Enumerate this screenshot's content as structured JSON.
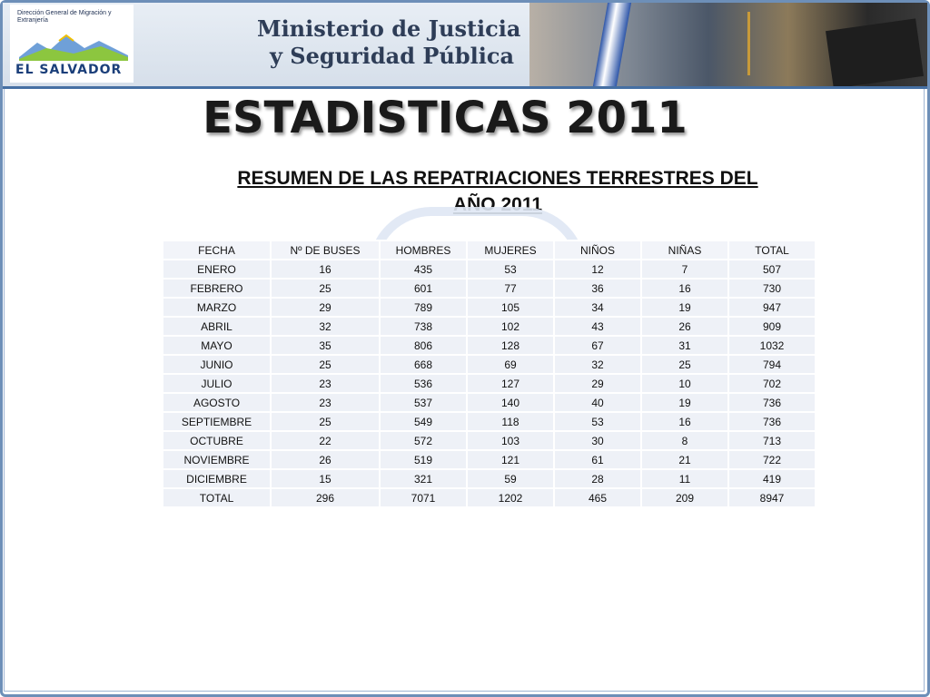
{
  "header": {
    "logo_agency": "Dirección General de Migración y Extranjería",
    "logo_country": "EL SALVADOR",
    "ministry_line1": "Ministerio de Justicia",
    "ministry_line2": "y Seguridad Pública"
  },
  "title": "ESTADISTICAS 2011",
  "subtitle": "RESUMEN DE LAS REPATRIACIONES TERRESTRES DEL AÑO 2011",
  "table": {
    "headers": [
      "FECHA",
      "Nº DE BUSES",
      "HOMBRES",
      "MUJERES",
      "NIÑOS",
      "NIÑAS",
      "TOTAL"
    ],
    "rows": [
      [
        "ENERO",
        "16",
        "435",
        "53",
        "12",
        "7",
        "507"
      ],
      [
        "FEBRERO",
        "25",
        "601",
        "77",
        "36",
        "16",
        "730"
      ],
      [
        "MARZO",
        "29",
        "789",
        "105",
        "34",
        "19",
        "947"
      ],
      [
        "ABRIL",
        "32",
        "738",
        "102",
        "43",
        "26",
        "909"
      ],
      [
        "MAYO",
        "35",
        "806",
        "128",
        "67",
        "31",
        "1032"
      ],
      [
        "JUNIO",
        "25",
        "668",
        "69",
        "32",
        "25",
        "794"
      ],
      [
        "JULIO",
        "23",
        "536",
        "127",
        "29",
        "10",
        "702"
      ],
      [
        "AGOSTO",
        "23",
        "537",
        "140",
        "40",
        "19",
        "736"
      ],
      [
        "SEPTIEMBRE",
        "25",
        "549",
        "118",
        "53",
        "16",
        "736"
      ],
      [
        "OCTUBRE",
        "22",
        "572",
        "103",
        "30",
        "8",
        "713"
      ],
      [
        "NOVIEMBRE",
        "26",
        "519",
        "121",
        "61",
        "21",
        "722"
      ],
      [
        "DICIEMBRE",
        "15",
        "321",
        "59",
        "28",
        "11",
        "419"
      ],
      [
        "TOTAL",
        "296",
        "7071",
        "1202",
        "465",
        "209",
        "8947"
      ]
    ]
  },
  "colors": {
    "banner_border": "#456fa3",
    "cell_background": "#eef1f7"
  }
}
